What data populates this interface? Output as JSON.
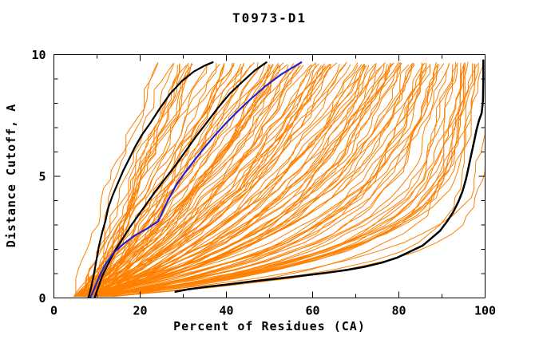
{
  "chart_data": {
    "type": "line",
    "title": "T0973-D1",
    "xlabel": "Percent of Residues (CA)",
    "ylabel": "Distance Cutoff, A",
    "xlim": [
      0,
      100
    ],
    "ylim": [
      0,
      10
    ],
    "x_major_ticks": [
      0,
      20,
      40,
      60,
      80,
      100
    ],
    "x_minor_ticks": [
      10,
      30,
      50,
      70,
      90
    ],
    "y_major_ticks": [
      0,
      5,
      10
    ],
    "y_minor_ticks": [
      1,
      2,
      3,
      4,
      6,
      7,
      8,
      9
    ],
    "grid": false,
    "legend_position": "none",
    "colors": {
      "ensemble": "#ff8000",
      "highlight": "#2222cc",
      "reference": "#000000",
      "frame": "#000000",
      "background": "#ffffff"
    },
    "series": [
      {
        "name": "prediction-ensemble",
        "color": "#ff8000",
        "style": "procedural",
        "count": 132,
        "line_width": 1,
        "x_start_range": [
          4.5,
          10
        ],
        "x_top_range": [
          22,
          100
        ],
        "max_cutoff": 9.7
      },
      {
        "name": "best-model-envelope",
        "color": "#000000",
        "line_width": 2.5,
        "points": [
          [
            28,
            0.25
          ],
          [
            31,
            0.35
          ],
          [
            35,
            0.45
          ],
          [
            40,
            0.55
          ],
          [
            46,
            0.68
          ],
          [
            52,
            0.8
          ],
          [
            58,
            0.92
          ],
          [
            63,
            1.03
          ],
          [
            68,
            1.15
          ],
          [
            72,
            1.28
          ],
          [
            76,
            1.45
          ],
          [
            79.5,
            1.65
          ],
          [
            82.5,
            1.9
          ],
          [
            85.5,
            2.15
          ],
          [
            87.5,
            2.45
          ],
          [
            89.5,
            2.75
          ],
          [
            91,
            3.1
          ],
          [
            92.5,
            3.5
          ],
          [
            93.8,
            3.95
          ],
          [
            94.8,
            4.4
          ],
          [
            95.6,
            4.9
          ],
          [
            96.2,
            5.4
          ],
          [
            96.8,
            5.9
          ],
          [
            97.4,
            6.4
          ],
          [
            98,
            6.9
          ],
          [
            98.6,
            7.3
          ],
          [
            99.2,
            7.6
          ],
          [
            99.5,
            8.1
          ],
          [
            99.6,
            9.0
          ],
          [
            99.6,
            9.8
          ]
        ]
      },
      {
        "name": "reference-model-1",
        "color": "#000000",
        "line_width": 2.2,
        "points": [
          [
            8,
            0
          ],
          [
            8.6,
            0.4
          ],
          [
            9.2,
            0.9
          ],
          [
            9.8,
            1.5
          ],
          [
            10.4,
            2.1
          ],
          [
            11.2,
            2.7
          ],
          [
            12,
            3.2
          ],
          [
            12.6,
            3.7
          ],
          [
            13.6,
            4.2
          ],
          [
            14.8,
            4.7
          ],
          [
            16,
            5.2
          ],
          [
            17.4,
            5.7
          ],
          [
            18.8,
            6.2
          ],
          [
            20.4,
            6.7
          ],
          [
            22.4,
            7.2
          ],
          [
            24.6,
            7.8
          ],
          [
            27,
            8.4
          ],
          [
            29.6,
            8.9
          ],
          [
            32.4,
            9.3
          ],
          [
            35,
            9.55
          ],
          [
            37,
            9.7
          ]
        ]
      },
      {
        "name": "reference-model-2",
        "color": "#000000",
        "line_width": 2.2,
        "points": [
          [
            9.4,
            0
          ],
          [
            10.2,
            0.4
          ],
          [
            11.2,
            0.9
          ],
          [
            12.6,
            1.4
          ],
          [
            14,
            1.9
          ],
          [
            15.8,
            2.4
          ],
          [
            17.6,
            2.9
          ],
          [
            19.6,
            3.4
          ],
          [
            21.6,
            3.9
          ],
          [
            23.6,
            4.4
          ],
          [
            25.8,
            4.9
          ],
          [
            28,
            5.4
          ],
          [
            30.4,
            6.0
          ],
          [
            32.8,
            6.6
          ],
          [
            35.4,
            7.2
          ],
          [
            38,
            7.8
          ],
          [
            40.8,
            8.4
          ],
          [
            43.8,
            8.9
          ],
          [
            46.6,
            9.35
          ],
          [
            49.4,
            9.7
          ]
        ]
      },
      {
        "name": "highlighted-model",
        "color": "#2222cc",
        "line_width": 2.2,
        "points": [
          [
            8.4,
            0
          ],
          [
            9.4,
            0.4
          ],
          [
            10.6,
            0.9
          ],
          [
            12,
            1.4
          ],
          [
            13.8,
            1.85
          ],
          [
            16,
            2.2
          ],
          [
            18.6,
            2.55
          ],
          [
            21.6,
            2.85
          ],
          [
            24.2,
            3.15
          ],
          [
            25.6,
            3.7
          ],
          [
            27,
            4.2
          ],
          [
            28.6,
            4.7
          ],
          [
            30.6,
            5.2
          ],
          [
            32.8,
            5.7
          ],
          [
            35,
            6.2
          ],
          [
            37.4,
            6.7
          ],
          [
            40,
            7.2
          ],
          [
            42.8,
            7.7
          ],
          [
            45.8,
            8.2
          ],
          [
            49,
            8.7
          ],
          [
            52.8,
            9.2
          ],
          [
            57.5,
            9.7
          ]
        ]
      }
    ]
  }
}
